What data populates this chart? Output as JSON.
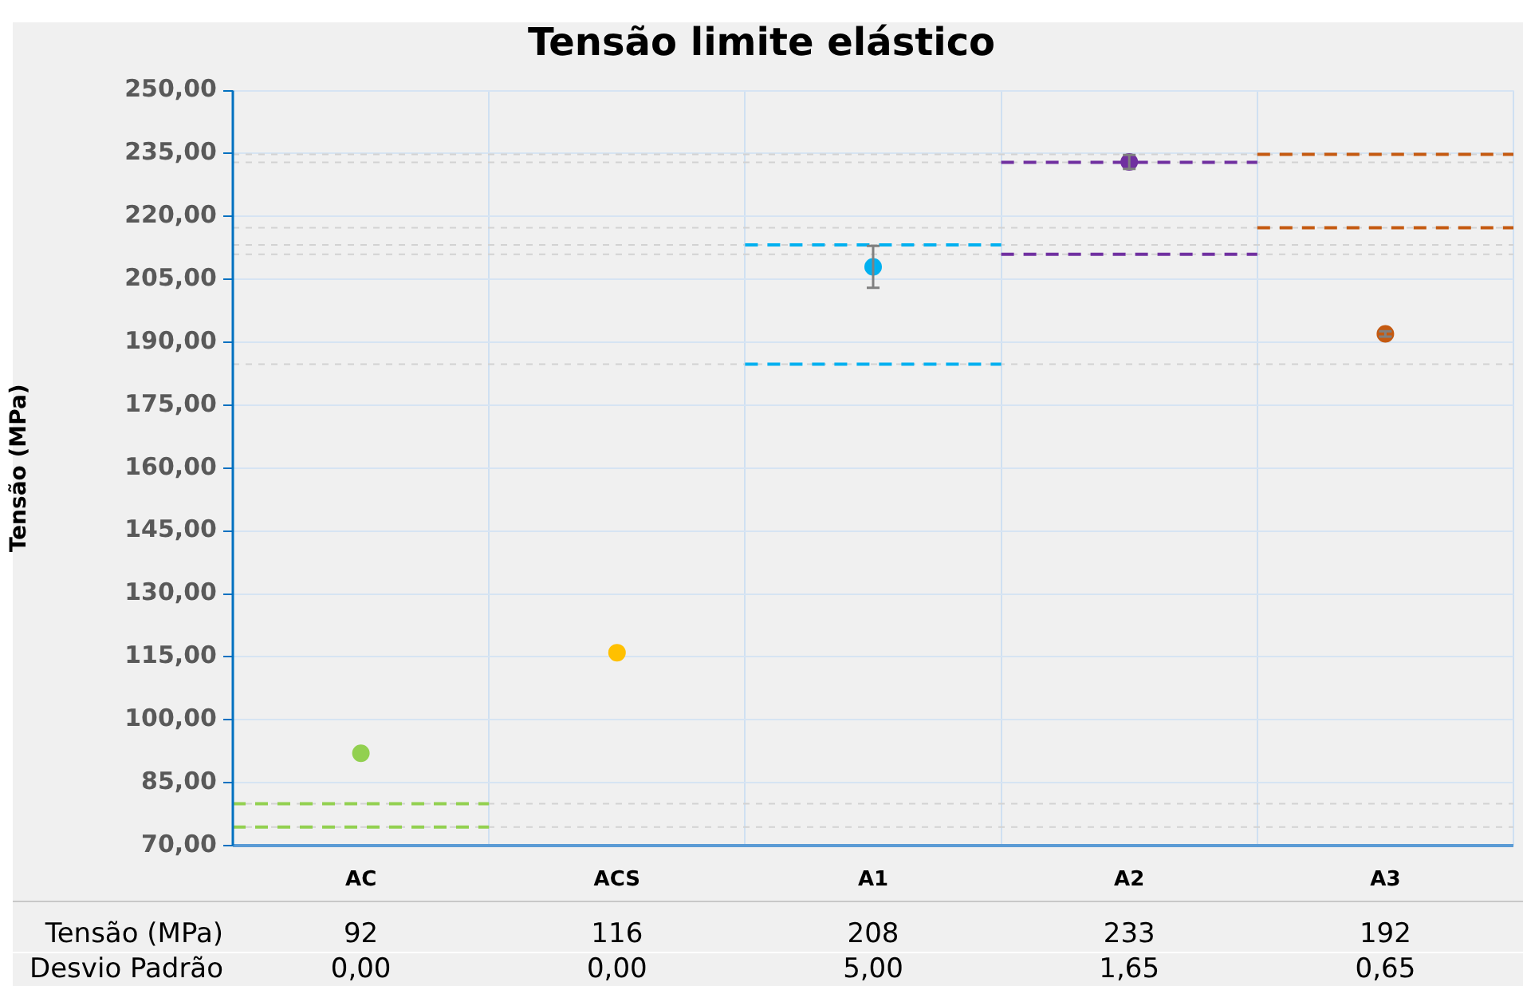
{
  "chart_data": {
    "type": "scatter",
    "title": "Tensão limite elástico",
    "ylabel": "Tensão (MPa)",
    "categories": [
      "AC",
      "ACS",
      "A1",
      "A2",
      "A3"
    ],
    "values": [
      92,
      116,
      208,
      233,
      192
    ],
    "errors": [
      0,
      0,
      5,
      1.65,
      0.65
    ],
    "colors": [
      "#92d050",
      "#ffc000",
      "#00b0f0",
      "#7030a0",
      "#c55a11"
    ],
    "marker": "circle",
    "data_labels": true,
    "grid": true,
    "legend": false,
    "annotations": [
      "Tensão (MPa)",
      "Desvio Padrão",
      "0,00",
      "0,00",
      "5,00",
      "1,65",
      "0,65"
    ],
    "ylim": [
      70,
      250
    ],
    "yticks": [
      {
        "value": 70,
        "label": "70,00"
      },
      {
        "value": 85,
        "label": "85,00"
      },
      {
        "value": 100,
        "label": "100,00"
      },
      {
        "value": 115,
        "label": "115,00"
      },
      {
        "value": 130,
        "label": "130,00"
      },
      {
        "value": 145,
        "label": "145,00"
      },
      {
        "value": 160,
        "label": "160,00"
      },
      {
        "value": 175,
        "label": "175,00"
      },
      {
        "value": 190,
        "label": "190,00"
      },
      {
        "value": 205,
        "label": "205,00"
      },
      {
        "value": 220,
        "label": "220,00"
      },
      {
        "value": 235,
        "label": "235,00"
      },
      {
        "value": 250,
        "label": "250,00"
      }
    ],
    "ref_lines": [
      {
        "axis": "y",
        "value": 80,
        "color": "#92d050",
        "line_style": "dashed"
      },
      {
        "axis": "y",
        "value": 74.4,
        "color": "#92d050",
        "line_style": "dashed"
      },
      {
        "axis": "y",
        "value": 213.2,
        "color": "#00b0f0",
        "line_style": "dashed"
      },
      {
        "axis": "y",
        "value": 184.8,
        "color": "#00b0f0",
        "line_style": "dashed"
      },
      {
        "axis": "y",
        "value": 232.9,
        "color": "#7030a0",
        "line_style": "dashed"
      },
      {
        "axis": "y",
        "value": 211,
        "color": "#7030a0",
        "line_style": "dashed"
      },
      {
        "axis": "y",
        "value": 234.8,
        "color": "#c55a11",
        "line_style": "dashed"
      },
      {
        "axis": "y",
        "value": 217.3,
        "color": "#c55a11",
        "line_style": "dashed"
      }
    ]
  }
}
